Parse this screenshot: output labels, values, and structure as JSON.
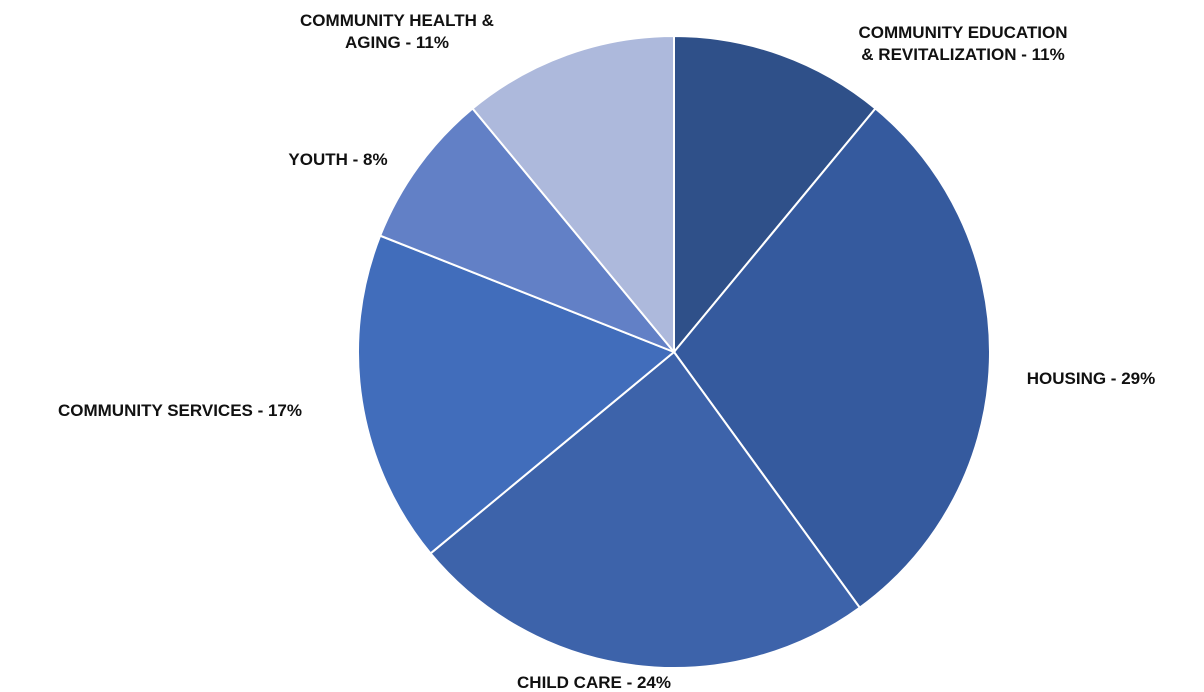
{
  "chart_data": {
    "type": "pie",
    "title": "",
    "start_angle_deg": 0,
    "direction": "clockwise",
    "slices": [
      {
        "category": "COMMUNITY EDUCATION & REVITALIZATION",
        "value": 11,
        "label_lines": [
          "COMMUNITY EDUCATION",
          "& REVITALIZATION - 11%"
        ],
        "color": "#2F5089"
      },
      {
        "category": "HOUSING",
        "value": 29,
        "label_lines": [
          "HOUSING - 29%"
        ],
        "color": "#355A9E"
      },
      {
        "category": "CHILD CARE",
        "value": 24,
        "label_lines": [
          "CHILD CARE - 24%"
        ],
        "color": "#3D63AA"
      },
      {
        "category": "COMMUNITY SERVICES",
        "value": 17,
        "label_lines": [
          "COMMUNITY SERVICES - 17%"
        ],
        "color": "#416DBB"
      },
      {
        "category": "YOUTH",
        "value": 8,
        "label_lines": [
          "YOUTH - 8%"
        ],
        "color": "#6280C6"
      },
      {
        "category": "COMMUNITY HEALTH & AGING",
        "value": 11,
        "label_lines": [
          "COMMUNITY HEALTH &",
          "AGING - 11%"
        ],
        "color": "#ADB9DC"
      }
    ]
  }
}
